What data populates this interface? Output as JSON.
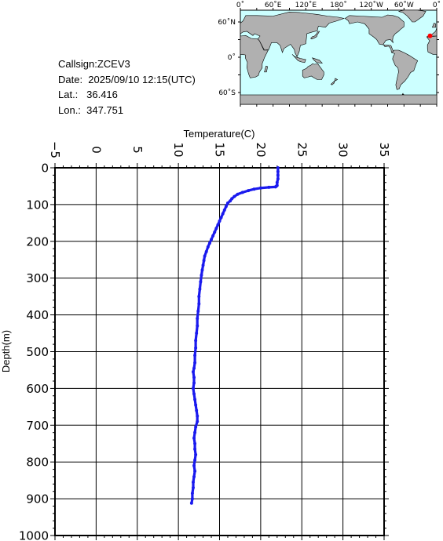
{
  "info": {
    "callsign": "Callsign:ZCEV3",
    "date": "Date:  2025/09/10 12:15(UTC)",
    "lat": "Lat.:   36.416",
    "lon": "Lon.:  347.751"
  },
  "map": {
    "lon_labels": [
      "0˚",
      "60˚E",
      "120˚E",
      "180˚",
      "120˚W",
      "60˚W",
      "0˚"
    ],
    "lat_labels": [
      "60˚N",
      "0˚",
      "60˚S"
    ],
    "station_marker_color": "#ff0000",
    "ocean_color": "#ccffff",
    "land_color": "#b0b0b0"
  },
  "chart_data": {
    "type": "line",
    "xlabel": "Temperature(C)",
    "ylabel": "Depth(m)",
    "xlim": [
      -5,
      35
    ],
    "ylim": [
      1000,
      0
    ],
    "x_ticks": [
      -5,
      0,
      5,
      10,
      15,
      20,
      25,
      30,
      35
    ],
    "y_ticks": [
      0,
      100,
      200,
      300,
      400,
      500,
      600,
      700,
      800,
      900,
      1000
    ],
    "grid": true,
    "line_color": "#1a1aee",
    "series": [
      {
        "points": [
          [
            22.1,
            0
          ],
          [
            22.1,
            10
          ],
          [
            22.1,
            20
          ],
          [
            22.1,
            30
          ],
          [
            22.0,
            40
          ],
          [
            22.0,
            48
          ],
          [
            21.9,
            50
          ],
          [
            21.8,
            52
          ],
          [
            21.0,
            53
          ],
          [
            20.0,
            55
          ],
          [
            19.2,
            58
          ],
          [
            18.5,
            62
          ],
          [
            17.8,
            67
          ],
          [
            17.2,
            72
          ],
          [
            16.8,
            78
          ],
          [
            16.5,
            84
          ],
          [
            16.3,
            90
          ],
          [
            16.0,
            96
          ],
          [
            15.8,
            105
          ],
          [
            15.6,
            115
          ],
          [
            15.4,
            125
          ],
          [
            15.2,
            135
          ],
          [
            15.0,
            145
          ],
          [
            14.8,
            155
          ],
          [
            14.6,
            165
          ],
          [
            14.4,
            175
          ],
          [
            14.2,
            185
          ],
          [
            14.0,
            195
          ],
          [
            13.8,
            205
          ],
          [
            13.6,
            215
          ],
          [
            13.4,
            228
          ],
          [
            13.2,
            240
          ],
          [
            13.1,
            252
          ],
          [
            13.0,
            265
          ],
          [
            12.9,
            278
          ],
          [
            12.8,
            292
          ],
          [
            12.7,
            310
          ],
          [
            12.6,
            330
          ],
          [
            12.5,
            350
          ],
          [
            12.5,
            370
          ],
          [
            12.4,
            390
          ],
          [
            12.3,
            410
          ],
          [
            12.3,
            430
          ],
          [
            12.2,
            450
          ],
          [
            12.1,
            470
          ],
          [
            12.1,
            490
          ],
          [
            12.0,
            510
          ],
          [
            12.0,
            530
          ],
          [
            11.9,
            545
          ],
          [
            11.8,
            555
          ],
          [
            11.9,
            570
          ],
          [
            11.9,
            585
          ],
          [
            11.8,
            600
          ],
          [
            11.9,
            615
          ],
          [
            12.0,
            630
          ],
          [
            12.1,
            645
          ],
          [
            12.2,
            660
          ],
          [
            12.3,
            675
          ],
          [
            12.3,
            690
          ],
          [
            12.1,
            705
          ],
          [
            12.0,
            720
          ],
          [
            11.9,
            735
          ],
          [
            12.0,
            750
          ],
          [
            12.0,
            765
          ],
          [
            12.1,
            780
          ],
          [
            12.0,
            795
          ],
          [
            11.9,
            810
          ],
          [
            12.0,
            825
          ],
          [
            11.9,
            840
          ],
          [
            11.8,
            855
          ],
          [
            11.8,
            870
          ],
          [
            11.7,
            885
          ],
          [
            11.7,
            900
          ],
          [
            11.6,
            912
          ]
        ]
      }
    ]
  }
}
